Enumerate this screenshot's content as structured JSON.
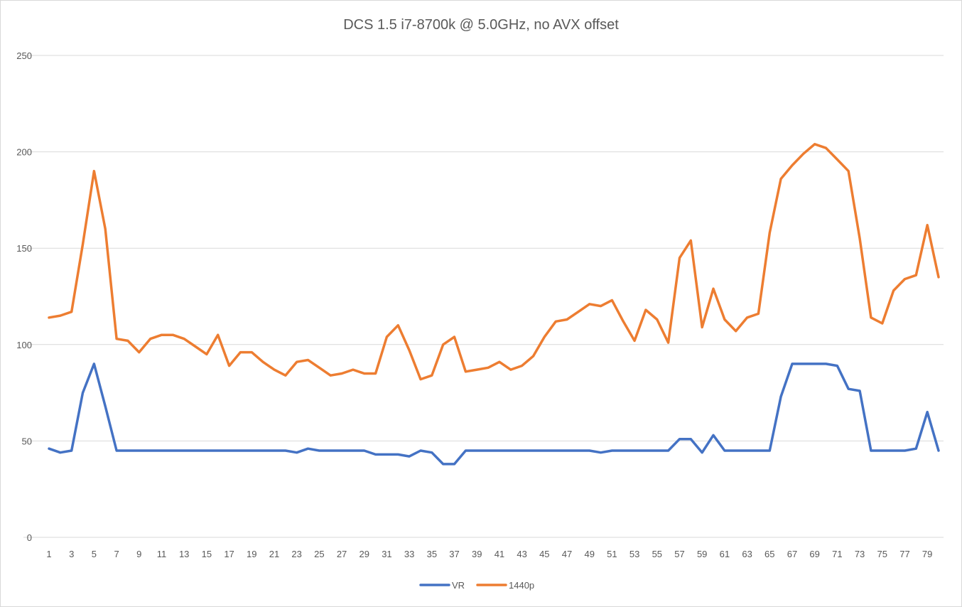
{
  "chart_data": {
    "type": "line",
    "title": "DCS 1.5 i7-8700k @ 5.0GHz, no AVX offset",
    "xlabel": "",
    "ylabel": "",
    "ylim": [
      0,
      250
    ],
    "yticks": [
      0,
      50,
      100,
      150,
      200,
      250
    ],
    "x": [
      1,
      2,
      3,
      4,
      5,
      6,
      7,
      8,
      9,
      10,
      11,
      12,
      13,
      14,
      15,
      16,
      17,
      18,
      19,
      20,
      21,
      22,
      23,
      24,
      25,
      26,
      27,
      28,
      29,
      30,
      31,
      32,
      33,
      34,
      35,
      36,
      37,
      38,
      39,
      40,
      41,
      42,
      43,
      44,
      45,
      46,
      47,
      48,
      49,
      50,
      51,
      52,
      53,
      54,
      55,
      56,
      57,
      58,
      59,
      60,
      61,
      62,
      63,
      64,
      65,
      66,
      67,
      68,
      69,
      70,
      71,
      72,
      73,
      74,
      75,
      76,
      77,
      78,
      79,
      80
    ],
    "xticks": [
      1,
      3,
      5,
      7,
      9,
      11,
      13,
      15,
      17,
      19,
      21,
      23,
      25,
      27,
      29,
      31,
      33,
      35,
      37,
      39,
      41,
      43,
      45,
      47,
      49,
      51,
      53,
      55,
      57,
      59,
      61,
      63,
      65,
      67,
      69,
      71,
      73,
      75,
      77,
      79
    ],
    "grid": true,
    "legend": "bottom",
    "series": [
      {
        "name": "VR",
        "color": "#4472c4",
        "values": [
          46,
          44,
          45,
          75,
          90,
          68,
          45,
          45,
          45,
          45,
          45,
          45,
          45,
          45,
          45,
          45,
          45,
          45,
          45,
          45,
          45,
          45,
          44,
          46,
          45,
          45,
          45,
          45,
          45,
          43,
          43,
          43,
          42,
          45,
          44,
          38,
          38,
          45,
          45,
          45,
          45,
          45,
          45,
          45,
          45,
          45,
          45,
          45,
          45,
          44,
          45,
          45,
          45,
          45,
          45,
          45,
          51,
          51,
          44,
          53,
          45,
          45,
          45,
          45,
          45,
          73,
          90,
          90,
          90,
          90,
          89,
          77,
          76,
          45,
          45,
          45,
          45,
          46,
          65,
          45
        ]
      },
      {
        "name": "1440p",
        "color": "#ed7d31",
        "values": [
          114,
          115,
          117,
          152,
          190,
          160,
          103,
          102,
          96,
          103,
          105,
          105,
          103,
          99,
          95,
          105,
          89,
          96,
          96,
          91,
          87,
          84,
          91,
          92,
          88,
          84,
          85,
          87,
          85,
          85,
          104,
          110,
          97,
          82,
          84,
          100,
          104,
          86,
          87,
          88,
          91,
          87,
          89,
          94,
          104,
          112,
          113,
          117,
          121,
          120,
          123,
          112,
          102,
          118,
          113,
          101,
          145,
          154,
          109,
          129,
          113,
          107,
          114,
          116,
          158,
          186,
          193,
          199,
          204,
          202,
          196,
          190,
          155,
          114,
          111,
          128,
          134,
          136,
          162,
          135
        ]
      }
    ]
  }
}
